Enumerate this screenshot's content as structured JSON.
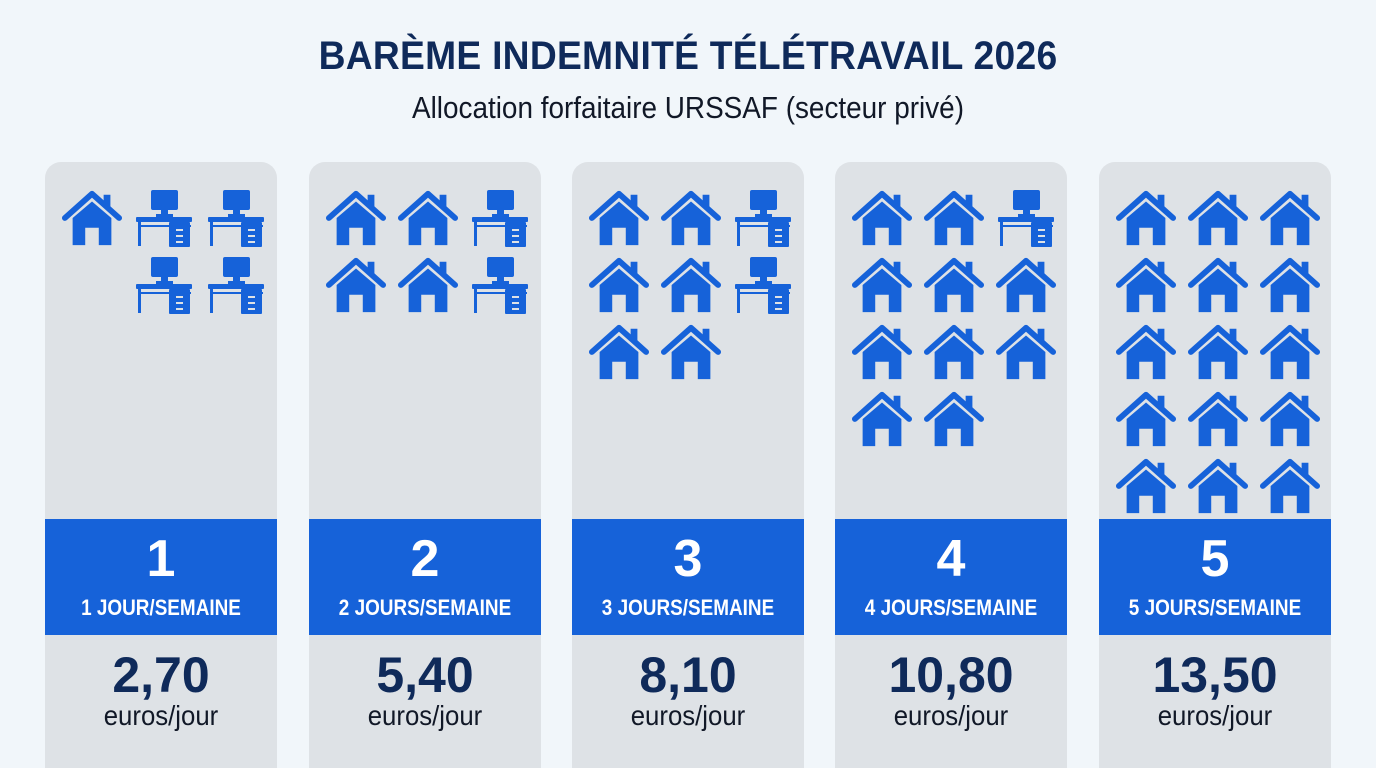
{
  "header": {
    "title": "BARÈME INDEMNITÉ TÉLÉTRAVAIL 2026",
    "subtitle": "Allocation forfaitaire URSSAF (secteur privé)"
  },
  "colors": {
    "accent": "#1662d9",
    "title": "#0f2a5a",
    "card_bg": "#dee2e6",
    "page_bg": "#f1f6fa"
  },
  "icons": {
    "home": "home-icon",
    "office": "office-desk-icon"
  },
  "cards": [
    {
      "number": "1",
      "label": "1 JOUR/SEMAINE",
      "value": "2,70",
      "unit": "euros/jour",
      "icons": [
        {
          "type": "home",
          "col": 0,
          "row": 0
        },
        {
          "type": "office",
          "col": 1,
          "row": 0
        },
        {
          "type": "office",
          "col": 2,
          "row": 0
        },
        {
          "type": "office",
          "col": 1,
          "row": 1
        },
        {
          "type": "office",
          "col": 2,
          "row": 1
        }
      ]
    },
    {
      "number": "2",
      "label": "2 JOURS/SEMAINE",
      "value": "5,40",
      "unit": "euros/jour",
      "icons": [
        {
          "type": "home",
          "col": 0,
          "row": 0
        },
        {
          "type": "home",
          "col": 1,
          "row": 0
        },
        {
          "type": "office",
          "col": 2,
          "row": 0
        },
        {
          "type": "home",
          "col": 0,
          "row": 1
        },
        {
          "type": "home",
          "col": 1,
          "row": 1
        },
        {
          "type": "office",
          "col": 2,
          "row": 1
        }
      ]
    },
    {
      "number": "3",
      "label": "3 JOURS/SEMAINE",
      "value": "8,10",
      "unit": "euros/jour",
      "icons": [
        {
          "type": "home",
          "col": 0,
          "row": 0
        },
        {
          "type": "home",
          "col": 1,
          "row": 0
        },
        {
          "type": "office",
          "col": 2,
          "row": 0
        },
        {
          "type": "home",
          "col": 0,
          "row": 1
        },
        {
          "type": "home",
          "col": 1,
          "row": 1
        },
        {
          "type": "office",
          "col": 2,
          "row": 1
        },
        {
          "type": "home",
          "col": 0,
          "row": 2
        },
        {
          "type": "home",
          "col": 1,
          "row": 2
        }
      ]
    },
    {
      "number": "4",
      "label": "4 JOURS/SEMAINE",
      "value": "10,80",
      "unit": "euros/jour",
      "icons": [
        {
          "type": "home",
          "col": 0,
          "row": 0
        },
        {
          "type": "home",
          "col": 1,
          "row": 0
        },
        {
          "type": "office",
          "col": 2,
          "row": 0
        },
        {
          "type": "home",
          "col": 0,
          "row": 1
        },
        {
          "type": "home",
          "col": 1,
          "row": 1
        },
        {
          "type": "home",
          "col": 2,
          "row": 1
        },
        {
          "type": "home",
          "col": 0,
          "row": 2
        },
        {
          "type": "home",
          "col": 1,
          "row": 2
        },
        {
          "type": "home",
          "col": 2,
          "row": 2
        },
        {
          "type": "home",
          "col": 0,
          "row": 3
        },
        {
          "type": "home",
          "col": 1,
          "row": 3
        }
      ]
    },
    {
      "number": "5",
      "label": "5 JOURS/SEMAINE",
      "value": "13,50",
      "unit": "euros/jour",
      "icons": [
        {
          "type": "home",
          "col": 0,
          "row": 0
        },
        {
          "type": "home",
          "col": 1,
          "row": 0
        },
        {
          "type": "home",
          "col": 2,
          "row": 0
        },
        {
          "type": "home",
          "col": 0,
          "row": 1
        },
        {
          "type": "home",
          "col": 1,
          "row": 1
        },
        {
          "type": "home",
          "col": 2,
          "row": 1
        },
        {
          "type": "home",
          "col": 0,
          "row": 2
        },
        {
          "type": "home",
          "col": 1,
          "row": 2
        },
        {
          "type": "home",
          "col": 2,
          "row": 2
        },
        {
          "type": "home",
          "col": 0,
          "row": 3
        },
        {
          "type": "home",
          "col": 1,
          "row": 3
        },
        {
          "type": "home",
          "col": 2,
          "row": 3
        },
        {
          "type": "home",
          "col": 0,
          "row": 4
        },
        {
          "type": "home",
          "col": 1,
          "row": 4
        },
        {
          "type": "home",
          "col": 2,
          "row": 4
        }
      ]
    }
  ]
}
